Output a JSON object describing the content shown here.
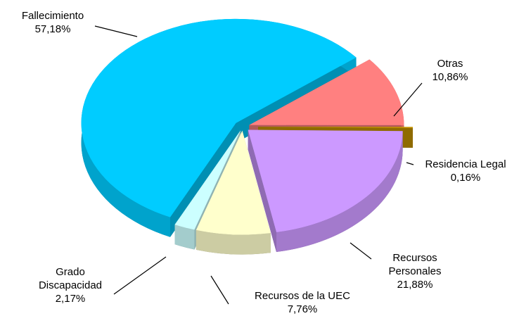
{
  "chart_data": {
    "type": "pie",
    "categories": [
      "Otras",
      "Residencia Legal",
      "Recursos Personales",
      "Recursos de la UEC",
      "Grado Discapacidad",
      "Fallecimiento"
    ],
    "values": [
      10.86,
      0.16,
      21.88,
      7.76,
      2.17,
      57.18
    ],
    "value_labels": [
      "10,86%",
      "0,16%",
      "21,88%",
      "7,76%",
      "2,17%",
      "57,18%"
    ],
    "colors": [
      "#ff8080",
      "#cc9900",
      "#cc99ff",
      "#ffffcc",
      "#ccffff",
      "#00ccff"
    ]
  }
}
